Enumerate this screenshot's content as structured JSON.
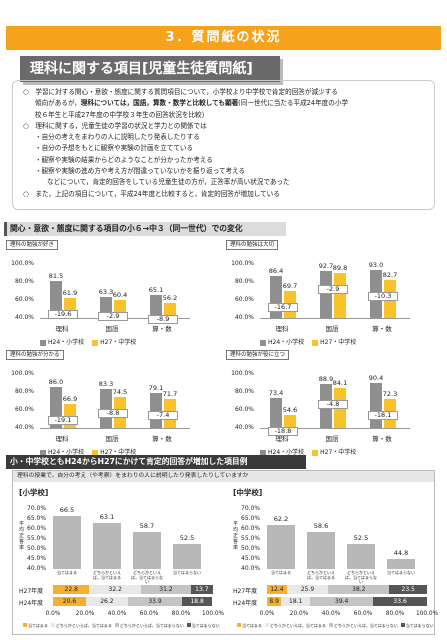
{
  "header": {
    "title": "3．質問紙の状況"
  },
  "main_heading": "理科に関する項目[児童生徒質問紙]",
  "text": {
    "p1": "○　学習に対する関心・意欲・態度に関する質問項目について，小学校より中学校で肯定的回答が減少する",
    "p1b_pre": "傾向があるが，",
    "p1b_bold": "理科については，国語，算数・数学と比較しても顕著",
    "p1b_post": "(同一世代に当たる平成24年度の小学",
    "p1c": "校６年生と平成27年度の中学校３年生の回答状況を比較)",
    "p2": "○　理科に関する，児童生徒の学習の状況と学力との関係では",
    "p2a": "・自分の考えをまわりの人に説明したり発表したりする",
    "p2b": "・自分の予想をもとに観察や実験の計画を立てている",
    "p2c": "・観察や実験の結果からどのようなことが分かったか考える",
    "p2d": "・観察や実験の進め方や考え方が間違っていないかを振り返って考える",
    "p2e": "などについて，肯定的回答をしている児童生徒の方が，正答率が高い状況であった",
    "p3": "○　また，上記の項目について，平成24年度と比較すると，肯定的回答が増加している"
  },
  "section1": "関心・意欲・態度に関する項目の小６→中３（同一世代）での変化",
  "section2": "小・中学校ともH24からH27にかけて肯定的回答が増加した項目例",
  "legend": {
    "a": "H24・小学校",
    "b": "H27・中学校"
  },
  "axis_ticks": [
    "100.0%",
    "80.0%",
    "60.0%",
    "40.0%"
  ],
  "chart_data": [
    {
      "type": "bar",
      "title": "理科の勉強が好き",
      "categories": [
        "理科",
        "国語",
        "算・数"
      ],
      "series": [
        {
          "name": "H24・小学校",
          "values": [
            81.5,
            63.3,
            65.1
          ]
        },
        {
          "name": "H27・中学校",
          "values": [
            61.9,
            60.4,
            56.2
          ]
        }
      ],
      "diffs": [
        "-19.6",
        "-2.9",
        "-8.9"
      ],
      "ylim": [
        40,
        100
      ]
    },
    {
      "type": "bar",
      "title": "理科の勉強は大切",
      "categories": [
        "理科",
        "国語",
        "算・数"
      ],
      "series": [
        {
          "name": "H24・小学校",
          "values": [
            86.4,
            92.7,
            93.0
          ]
        },
        {
          "name": "H27・中学校",
          "values": [
            69.7,
            89.8,
            82.7
          ]
        }
      ],
      "diffs": [
        "-16.7",
        "-2.9",
        "-10.3"
      ],
      "ylim": [
        40,
        100
      ]
    },
    {
      "type": "bar",
      "title": "理科の勉強が分かる",
      "categories": [
        "理科",
        "国語",
        "算・数"
      ],
      "series": [
        {
          "name": "H24・小学校",
          "values": [
            86.0,
            83.3,
            79.1
          ]
        },
        {
          "name": "H27・中学校",
          "values": [
            66.9,
            74.5,
            71.7
          ]
        }
      ],
      "diffs": [
        "-19.1",
        "-8.8",
        "-7.4"
      ],
      "ylim": [
        40,
        100
      ]
    },
    {
      "type": "bar",
      "title": "理科の勉強が役に立つ",
      "categories": [
        "理科",
        "国語",
        "算・数"
      ],
      "series": [
        {
          "name": "H24・小学校",
          "values": [
            73.4,
            88.9,
            90.4
          ]
        },
        {
          "name": "H27・中学校",
          "values": [
            54.6,
            84.1,
            72.3
          ]
        }
      ],
      "diffs": [
        "-18.8",
        "-4.8",
        "-18.1"
      ],
      "ylim": [
        40,
        100
      ]
    }
  ],
  "question": "理科の授業で，自分の考え（や考察）をまわりの人に説明したり発表したりしていますか",
  "elem": {
    "label": "[小学校]",
    "ylabel": "平均正答率",
    "yticks": [
      "70.0%",
      "65.0%",
      "60.0%",
      "55.0%",
      "50.0%",
      "45.0%",
      "40.0%"
    ],
    "values": [
      66.5,
      63.1,
      58.7,
      52.5
    ],
    "categories": [
      "当てはまる",
      "どちらかといえば，当てはまる",
      "どちらかといえば，当てはまらない",
      "当てはまらない"
    ],
    "rows": [
      {
        "year": "H27年度",
        "values": [
          "22.8",
          "32.2",
          "31.2",
          "13.7"
        ]
      },
      {
        "year": "H24年度",
        "values": [
          "20.6",
          "26.2",
          "33.9",
          "18.8"
        ]
      }
    ],
    "xticks": [
      "0.0%",
      "20.0%",
      "40.0%",
      "60.0%",
      "80.0%",
      "100.0%"
    ]
  },
  "junior": {
    "label": "[中学校]",
    "ylabel": "平均正答率",
    "yticks": [
      "70.0%",
      "65.0%",
      "60.0%",
      "55.0%",
      "50.0%",
      "45.0%",
      "40.0%"
    ],
    "values": [
      62.2,
      58.6,
      52.5,
      44.8
    ],
    "categories": [
      "当てはまる",
      "どちらかといえば，当てはまる",
      "どちらかといえば，当てはまらない",
      "当てはまらない"
    ],
    "rows": [
      {
        "year": "H27年度",
        "values": [
          "12.4",
          "25.9",
          "38.2",
          "23.5"
        ]
      },
      {
        "year": "H24年度",
        "values": [
          "8.9",
          "18.1",
          "39.4",
          "33.6"
        ]
      }
    ],
    "xticks": [
      "0.0%",
      "20.0%",
      "40.0%",
      "60.0%",
      "80.0%",
      "100.0%"
    ]
  },
  "bottom_legend": [
    "当てはまる",
    "どちらかといえば，当てはまる",
    "どちらかといえば，当てはまらない",
    "当てはまらない"
  ],
  "colors": {
    "orange": "#f7a21b",
    "gray": "#8f8f8f",
    "yellow": "#f7c22a"
  }
}
